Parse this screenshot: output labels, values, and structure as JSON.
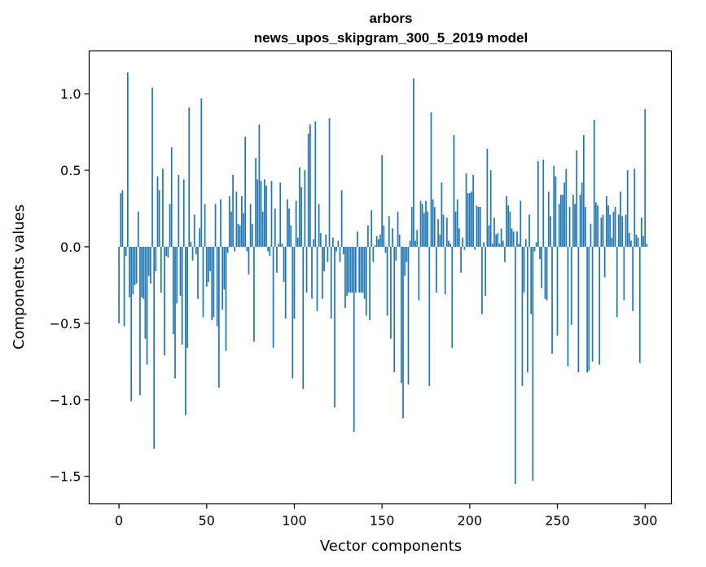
{
  "chart_data": {
    "type": "bar",
    "title": "arbors",
    "subtitle": "news_upos_skipgram_300_5_2019 model",
    "xlabel": "Vector components",
    "ylabel": "Components values",
    "xlim": [
      -17,
      315
    ],
    "ylim": [
      -1.68,
      1.28
    ],
    "xticks": [
      0,
      50,
      100,
      150,
      200,
      250,
      300
    ],
    "xtick_labels": [
      "0",
      "50",
      "100",
      "150",
      "200",
      "250",
      "300"
    ],
    "yticks": [
      1.0,
      0.5,
      0.0,
      -0.5,
      -1.0,
      -1.5
    ],
    "ytick_labels": [
      "1.0",
      "0.5",
      "0.0",
      "−0.5",
      "−1.0",
      "−1.5"
    ],
    "bar_color": "#1f77b4",
    "grid": false,
    "values": [
      -0.5,
      0.35,
      0.37,
      -0.52,
      -0.06,
      1.14,
      -0.33,
      -1.01,
      -0.31,
      -0.25,
      -0.24,
      0.23,
      -0.97,
      -0.33,
      -0.34,
      -0.6,
      -0.77,
      -0.19,
      -0.24,
      1.04,
      -1.32,
      -0.16,
      0.46,
      0.37,
      -0.3,
      0.51,
      -0.71,
      -0.06,
      -0.07,
      0.28,
      0.65,
      -0.57,
      -0.86,
      -0.37,
      0.47,
      -0.32,
      -0.64,
      0.44,
      -1.1,
      -0.66,
      0.91,
      0.03,
      -0.09,
      0.21,
      -0.05,
      -0.34,
      0.12,
      0.97,
      -0.46,
      0.28,
      -0.26,
      -0.23,
      -0.16,
      -0.48,
      -0.46,
      0.28,
      -0.52,
      -0.92,
      0.31,
      -0.41,
      -0.28,
      -0.68,
      -0.04,
      0.33,
      0.23,
      0.47,
      -0.03,
      0.36,
      0.15,
      0.14,
      0.33,
      0.22,
      0.72,
      -0.03,
      -0.18,
      0.28,
      0.15,
      -0.62,
      0.58,
      0.44,
      0.8,
      0.43,
      0.23,
      0.44,
      0.4,
      -0.03,
      -0.06,
      0.43,
      -0.66,
      0.25,
      -0.17,
      0.02,
      0.42,
      0.02,
      -0.23,
      -0.47,
      0.31,
      0.25,
      0.14,
      -0.86,
      -0.47,
      0.3,
      0.06,
      0.52,
      0.39,
      -0.93,
      0.5,
      -0.3,
      0.74,
      0.8,
      -0.34,
      0.05,
      0.82,
      -0.42,
      0.28,
      0.09,
      -0.34,
      -0.16,
      0.08,
      -0.1,
      0.84,
      -0.47,
      0.06,
      -1.05,
      -0.03,
      0.04,
      -0.1,
      0.37,
      -0.05,
      -0.4,
      -0.32,
      -0.3,
      -0.3,
      -0.3,
      -1.21,
      -0.3,
      0.1,
      -0.3,
      -0.3,
      -0.3,
      -0.34,
      -0.45,
      0.14,
      -0.48,
      0.24,
      -0.1,
      0.01,
      0.07,
      0.05,
      0.08,
      0.6,
      0.14,
      -0.04,
      -0.45,
      0.2,
      -0.6,
      0.12,
      -0.82,
      -0.09,
      0.23,
      0.08,
      -0.89,
      -1.12,
      -0.19,
      -0.1,
      -0.9,
      0.04,
      0.26,
      1.1,
      0.04,
      0.11,
      -0.35,
      0.3,
      0.28,
      0.22,
      0.3,
      0.23,
      -0.91,
      0.88,
      0.31,
      0.26,
      -0.3,
      0.18,
      0.08,
      0.42,
      0.21,
      -0.31,
      0.19,
      0.04,
      0.02,
      -0.66,
      0.73,
      0.23,
      0.31,
      0.12,
      -0.17,
      0.06,
      -0.02,
      0.48,
      0.35,
      0.35,
      0.36,
      0.47,
      -0.02,
      0.27,
      0.26,
      0.26,
      -0.44,
      0.03,
      -0.32,
      0.64,
      0.14,
      0.5,
      0.02,
      0.19,
      0.08,
      0.09,
      0.02,
      0.12,
      0.04,
      -0.1,
      0.33,
      0.27,
      0.23,
      0.12,
      0.1,
      -1.55,
      0.1,
      0.02,
      0.3,
      -0.91,
      -0.3,
      0.05,
      -0.82,
      0.21,
      -0.44,
      -1.53,
      -0.03,
      0.03,
      0.56,
      -0.08,
      -0.27,
      0.57,
      -0.34,
      -0.35,
      0.36,
      0.2,
      -0.7,
      0.53,
      0.46,
      -0.58,
      0.28,
      0.34,
      0.34,
      0.42,
      0.51,
      -0.78,
      0.26,
      -0.51,
      0.34,
      0.28,
      0.63,
      -0.82,
      0.34,
      0.42,
      0.73,
      0.26,
      -0.82,
      -0.81,
      0.15,
      -0.75,
      0.83,
      0.29,
      0.27,
      -0.77,
      0.19,
      0.21,
      -0.2,
      0.33,
      0.27,
      0.21,
      0.06,
      0.23,
      0.26,
      -0.46,
      0.21,
      0.36,
      0.2,
      -0.35,
      0.21,
      0.5,
      0.09,
      0.04,
      -0.42,
      0.51,
      0.08,
      0.06,
      -0.76,
      0.19,
      0.07,
      0.9,
      0.02
    ]
  }
}
